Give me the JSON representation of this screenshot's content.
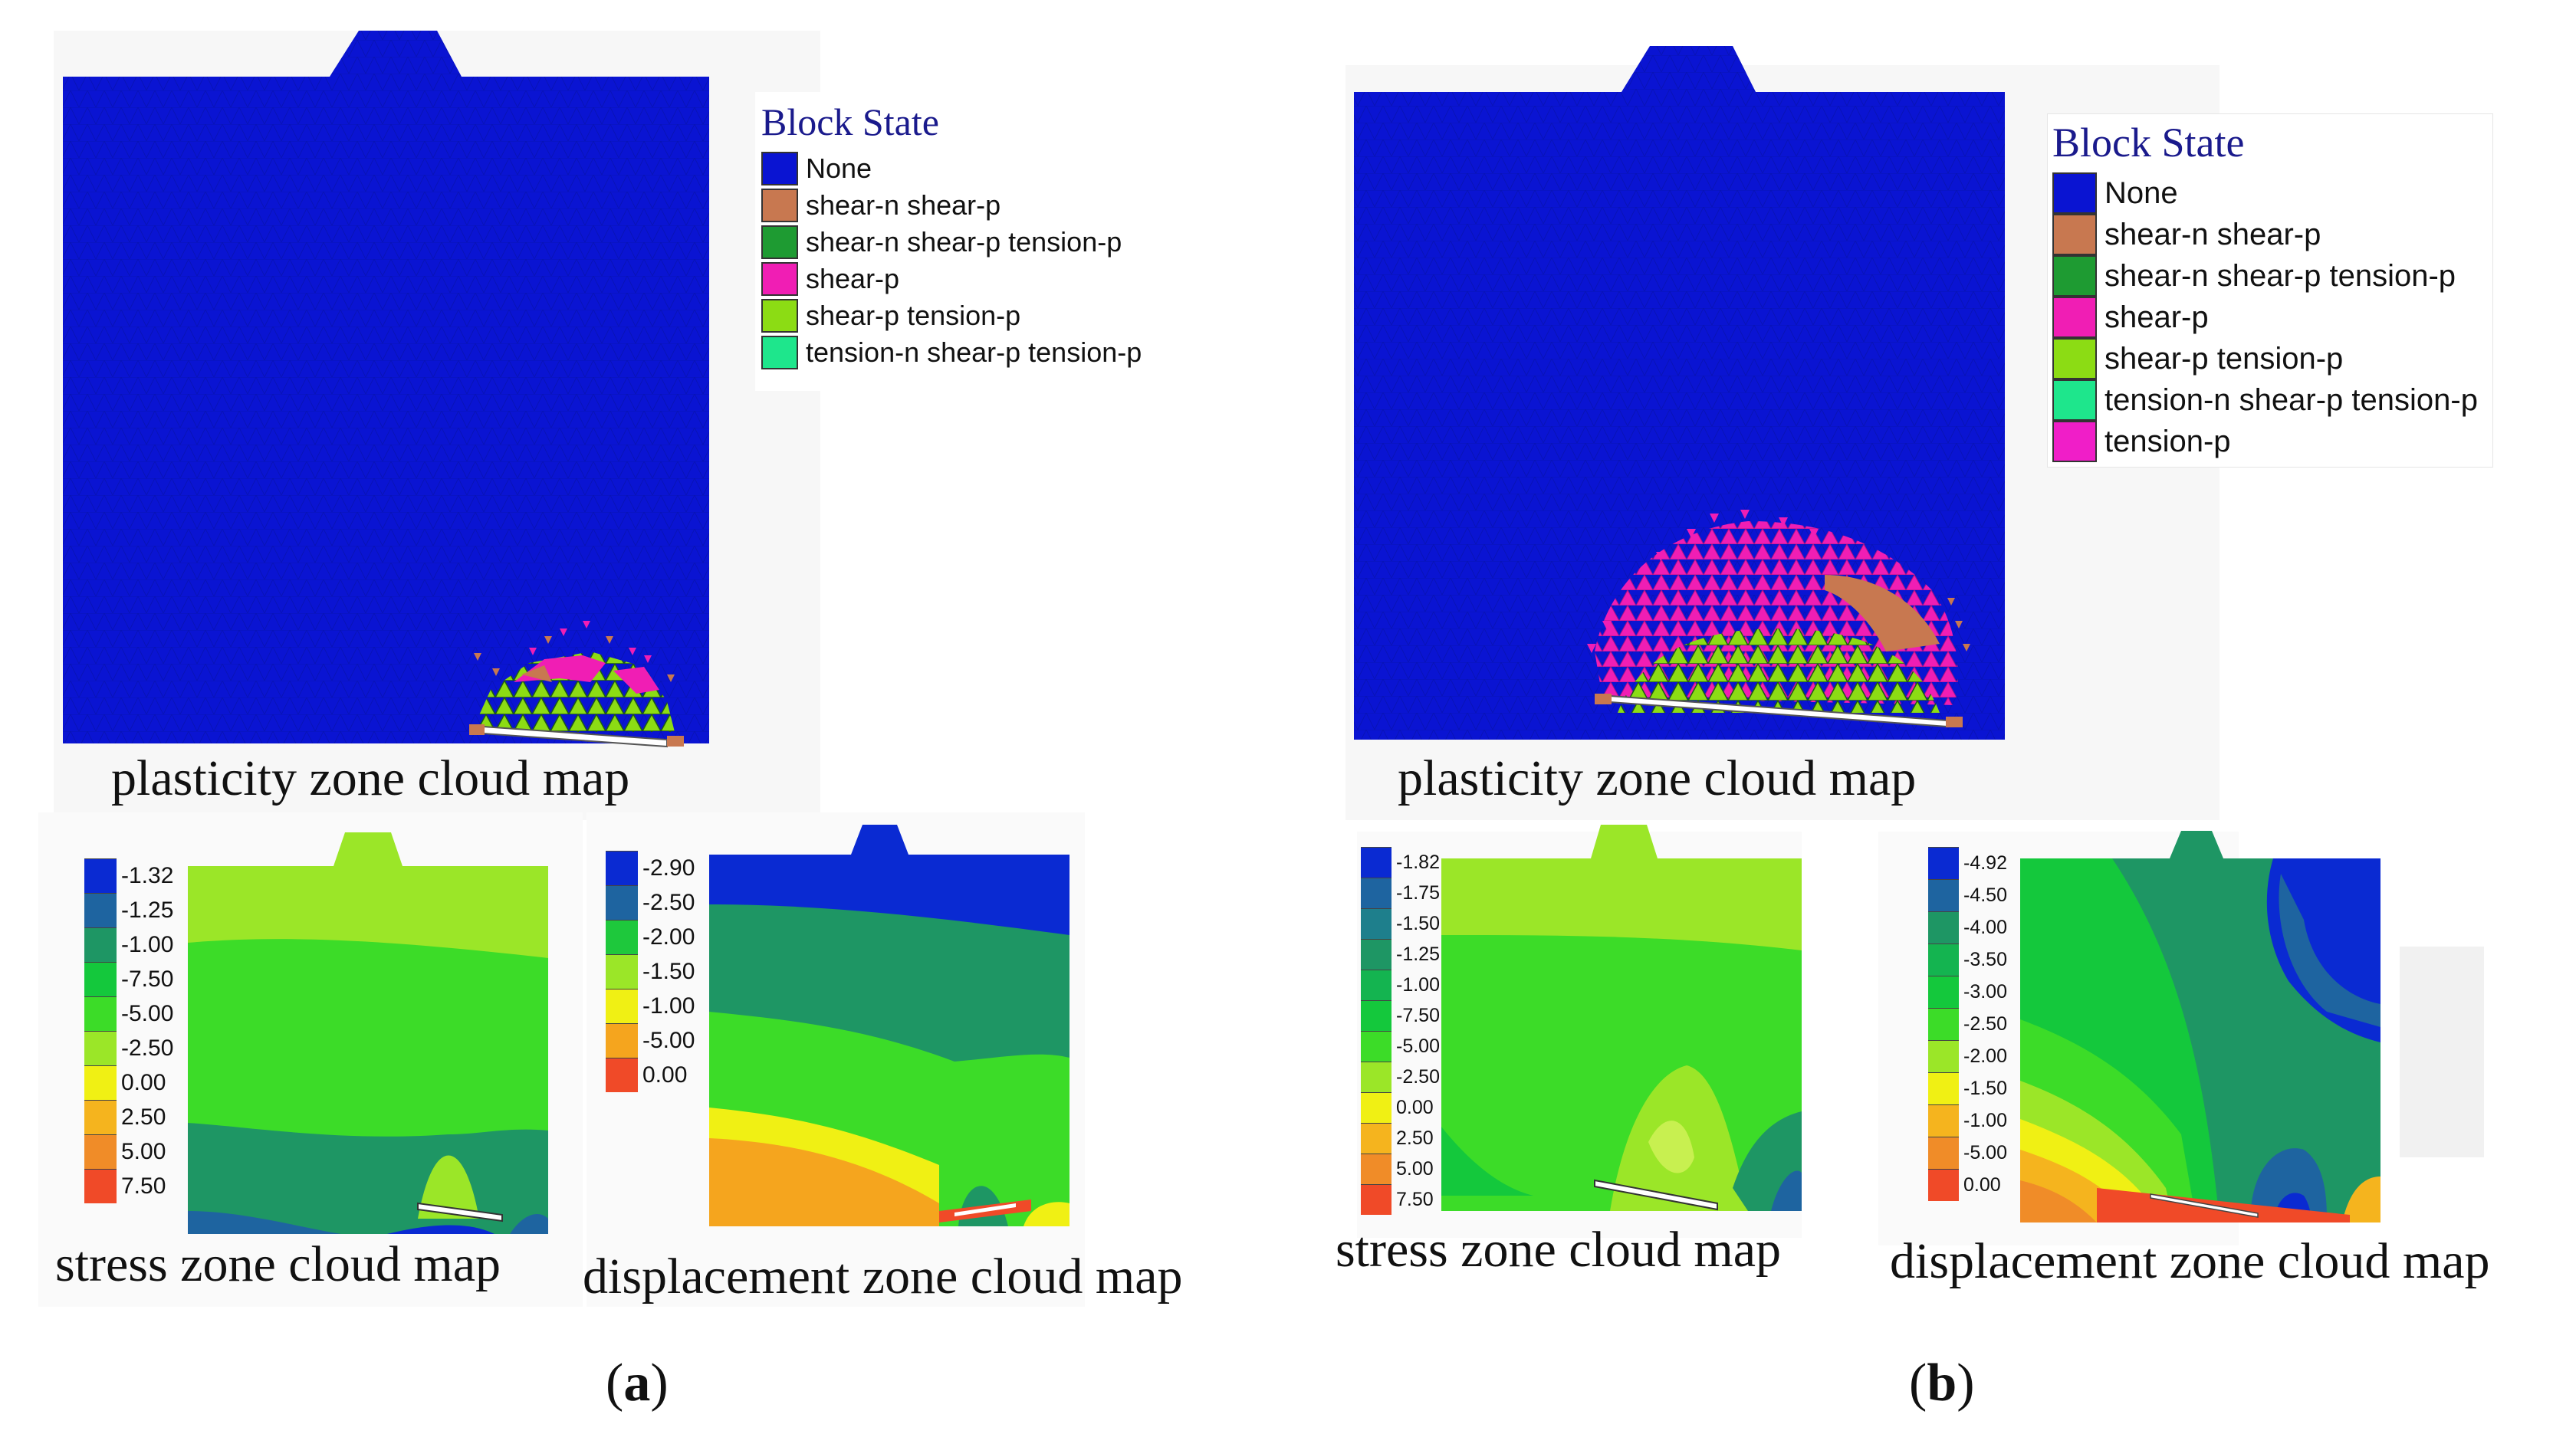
{
  "panels": [
    {
      "id": "a",
      "label_open": "(",
      "label_letter": "a",
      "label_close": ")",
      "plasticity": {
        "caption": "plasticity zone cloud map",
        "legend_title": "Block State",
        "legend": [
          {
            "label": "None",
            "color": "#0a14d2"
          },
          {
            "label": "shear-n shear-p",
            "color": "#c87850"
          },
          {
            "label": "shear-n shear-p tension-p",
            "color": "#1e9b32"
          },
          {
            "label": "shear-p",
            "color": "#f01eb4"
          },
          {
            "label": "shear-p tension-p",
            "color": "#8cdc14"
          },
          {
            "label": "tension-n shear-p tension-p",
            "color": "#1ee68c"
          }
        ]
      },
      "stress": {
        "caption": "stress zone cloud map",
        "scale": [
          {
            "label": "-1.32",
            "color": "#0a2ad2"
          },
          {
            "label": "-1.25",
            "color": "#1e64a0"
          },
          {
            "label": "-1.00",
            "color": "#1e9664"
          },
          {
            "label": "-7.50",
            "color": "#14c83c"
          },
          {
            "label": "-5.00",
            "color": "#3cdc28"
          },
          {
            "label": "-2.50",
            "color": "#9be628"
          },
          {
            "label": "0.00",
            "color": "#f0f014"
          },
          {
            "label": "2.50",
            "color": "#f5b41e"
          },
          {
            "label": "5.00",
            "color": "#f08c28"
          },
          {
            "label": "7.50",
            "color": "#f04a28"
          }
        ]
      },
      "displacement": {
        "caption": "displacement zone cloud map",
        "scale": [
          {
            "label": "-2.90",
            "color": "#0a2ad2"
          },
          {
            "label": "-2.50",
            "color": "#1e64a0"
          },
          {
            "label": "-2.00",
            "color": "#1ec83c"
          },
          {
            "label": "-1.50",
            "color": "#9be628"
          },
          {
            "label": "-1.00",
            "color": "#f0f014"
          },
          {
            "label": "-5.00",
            "color": "#f5a51e"
          },
          {
            "label": "0.00",
            "color": "#f04a28"
          }
        ]
      }
    },
    {
      "id": "b",
      "label_open": "(",
      "label_letter": "b",
      "label_close": ")",
      "plasticity": {
        "caption": "plasticity zone cloud map",
        "legend_title": "Block State",
        "legend": [
          {
            "label": "None",
            "color": "#0a14d2"
          },
          {
            "label": "shear-n shear-p",
            "color": "#c87850"
          },
          {
            "label": "shear-n shear-p tension-p",
            "color": "#1e9b32"
          },
          {
            "label": "shear-p",
            "color": "#f01eb4"
          },
          {
            "label": "shear-p tension-p",
            "color": "#8cdc14"
          },
          {
            "label": "tension-n shear-p tension-p",
            "color": "#1ee68c"
          },
          {
            "label": "tension-p",
            "color": "#f01ec8"
          }
        ]
      },
      "stress": {
        "caption": "stress zone cloud map",
        "scale": [
          {
            "label": "-1.82",
            "color": "#0a2ad2"
          },
          {
            "label": "-1.75",
            "color": "#1e64a0"
          },
          {
            "label": "-1.50",
            "color": "#1e7f8c"
          },
          {
            "label": "-1.25",
            "color": "#1e9664"
          },
          {
            "label": "-1.00",
            "color": "#14b450"
          },
          {
            "label": "-7.50",
            "color": "#14c83c"
          },
          {
            "label": "-5.00",
            "color": "#3cdc28"
          },
          {
            "label": "-2.50",
            "color": "#9be628"
          },
          {
            "label": "0.00",
            "color": "#f0f014"
          },
          {
            "label": "2.50",
            "color": "#f5b41e"
          },
          {
            "label": "5.00",
            "color": "#f08c28"
          },
          {
            "label": "7.50",
            "color": "#f04a28"
          }
        ]
      },
      "displacement": {
        "caption": "displacement zone cloud map",
        "scale": [
          {
            "label": "-4.92",
            "color": "#0a2ad2"
          },
          {
            "label": "-4.50",
            "color": "#1e64a0"
          },
          {
            "label": "-4.00",
            "color": "#1e9664"
          },
          {
            "label": "-3.50",
            "color": "#14b450"
          },
          {
            "label": "-3.00",
            "color": "#14c83c"
          },
          {
            "label": "-2.50",
            "color": "#3cdc28"
          },
          {
            "label": "-2.00",
            "color": "#9be628"
          },
          {
            "label": "-1.50",
            "color": "#f0f014"
          },
          {
            "label": "-1.00",
            "color": "#f5b41e"
          },
          {
            "label": "-5.00",
            "color": "#f08c28"
          },
          {
            "label": "0.00",
            "color": "#f04a28"
          }
        ]
      }
    }
  ]
}
